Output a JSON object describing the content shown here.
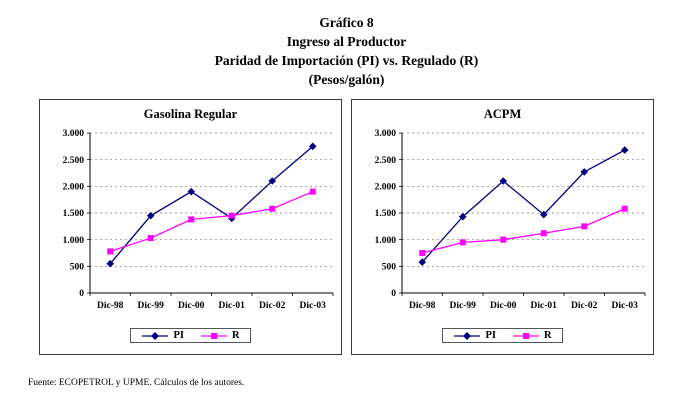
{
  "header": {
    "line1": "Gráfico 8",
    "line2": "Ingreso al Productor",
    "line3": "Paridad de Importación (PI) vs. Regulado (R)",
    "line4": "(Pesos/galón)"
  },
  "footer": {
    "source": "Fuente: ECOPETROL y UPME. Cálculos de los autores."
  },
  "colors": {
    "pi_series": "#000080",
    "r_series": "#FF00FF",
    "grid": "#777777",
    "axis": "#000000"
  },
  "chart_data": [
    {
      "type": "line",
      "title": "Gasolina Regular",
      "x": [
        "Dic-98",
        "Dic-99",
        "Dic-00",
        "Dic-01",
        "Dic-02",
        "Dic-03"
      ],
      "xlabel": "",
      "ylabel": "",
      "ylim": [
        0,
        3000
      ],
      "ytick_step": 500,
      "ytick_labels": [
        "0",
        "500",
        "1.000",
        "1.500",
        "2.000",
        "2.500",
        "3.000"
      ],
      "grid": "dashed-horizontal",
      "legend_position": "bottom",
      "series": [
        {
          "name": "PI",
          "color": "#000080",
          "marker": "diamond",
          "values": [
            550,
            1450,
            1900,
            1400,
            2100,
            2750
          ]
        },
        {
          "name": "R",
          "color": "#FF00FF",
          "marker": "square",
          "values": [
            780,
            1030,
            1380,
            1450,
            1580,
            1900
          ]
        }
      ]
    },
    {
      "type": "line",
      "title": "ACPM",
      "x": [
        "Dic-98",
        "Dic-99",
        "Dic-00",
        "Dic-01",
        "Dic-02",
        "Dic-03"
      ],
      "xlabel": "",
      "ylabel": "",
      "ylim": [
        0,
        3000
      ],
      "ytick_step": 500,
      "ytick_labels": [
        "0",
        "500",
        "1.000",
        "1.500",
        "2.000",
        "2.500",
        "3.000"
      ],
      "grid": "dashed-horizontal",
      "legend_position": "bottom",
      "series": [
        {
          "name": "PI",
          "color": "#000080",
          "marker": "diamond",
          "values": [
            580,
            1430,
            2100,
            1470,
            2270,
            2680
          ]
        },
        {
          "name": "R",
          "color": "#FF00FF",
          "marker": "square",
          "values": [
            750,
            950,
            1000,
            1120,
            1250,
            1580
          ]
        }
      ]
    }
  ]
}
